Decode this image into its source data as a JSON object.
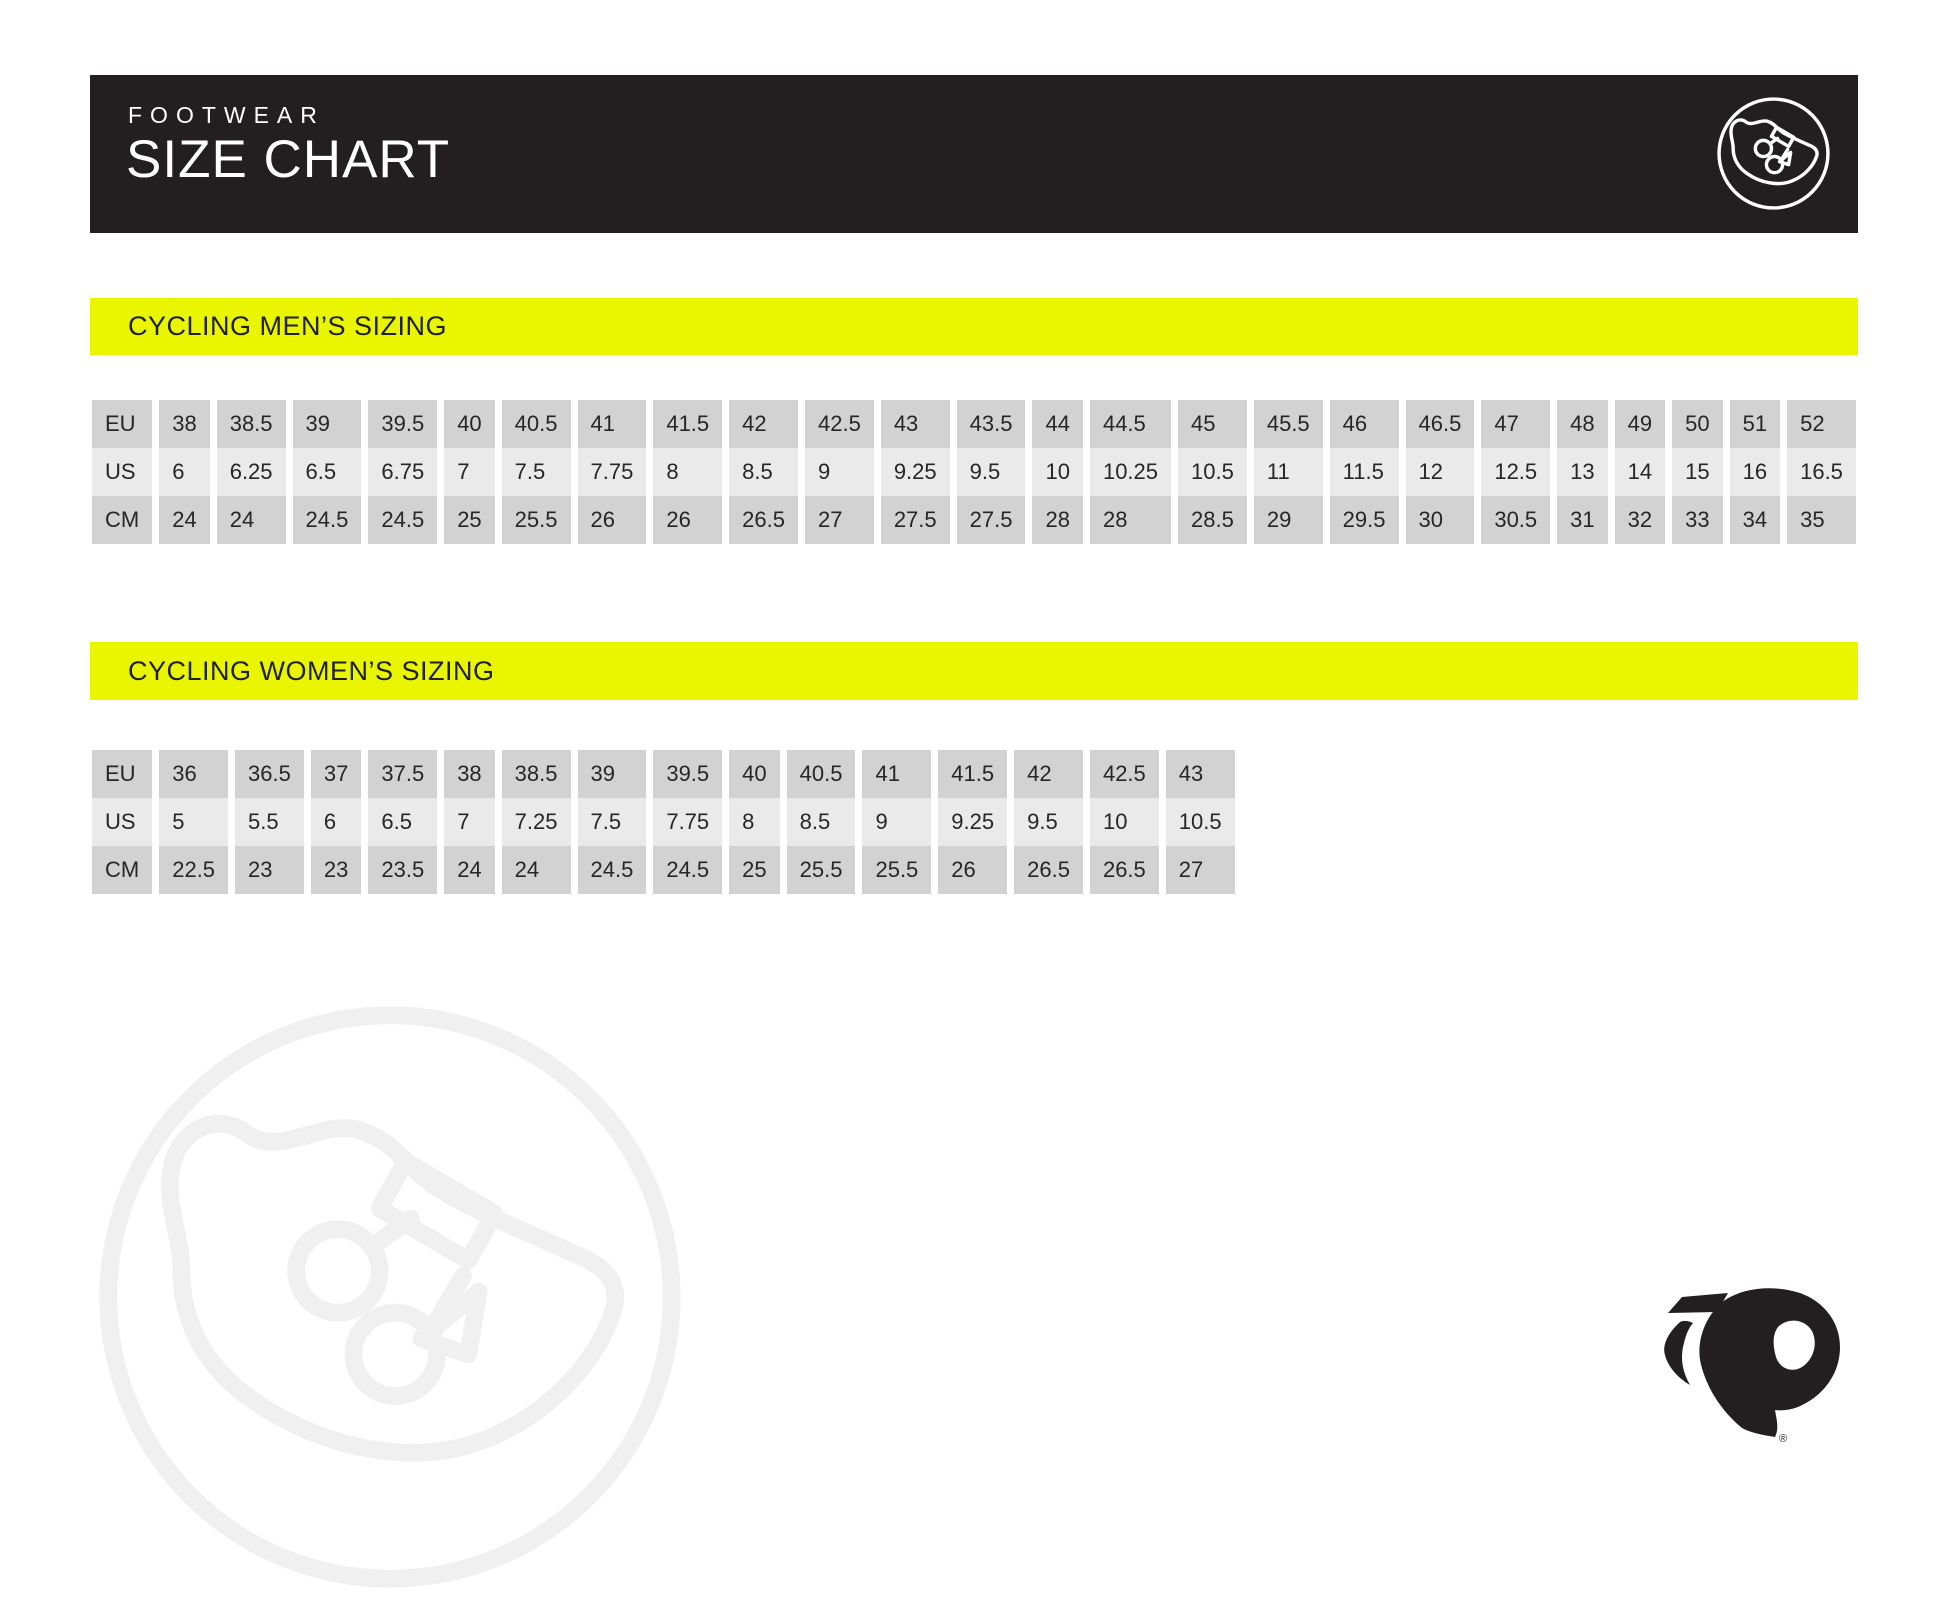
{
  "header": {
    "eyebrow": "FOOTWEAR",
    "title": "SIZE CHART"
  },
  "colors": {
    "header_bg": "#231f20",
    "accent_yellow": "#eaf600",
    "row_gray": "#d2d2d3",
    "row_light": "#eaeaeb",
    "watermark_gray": "#f0f0f1",
    "header_text": "#ffffff",
    "body_text": "#262626"
  },
  "icons": {
    "masthead": "cycling-shoe-icon",
    "watermark": "cycling-shoe-icon",
    "brand": "pearl-izumi-logo"
  },
  "sections": [
    {
      "id": "men",
      "title": "CYCLING MEN’S SIZING",
      "table": {
        "rows": [
          {
            "label": "EU",
            "values": [
              "38",
              "38.5",
              "39",
              "39.5",
              "40",
              "40.5",
              "41",
              "41.5",
              "42",
              "42.5",
              "43",
              "43.5",
              "44",
              "44.5",
              "45",
              "45.5",
              "46",
              "46.5",
              "47",
              "48",
              "49",
              "50",
              "51",
              "52"
            ]
          },
          {
            "label": "US",
            "values": [
              "6",
              "6.25",
              "6.5",
              "6.75",
              "7",
              "7.5",
              "7.75",
              "8",
              "8.5",
              "9",
              "9.25",
              "9.5",
              "10",
              "10.25",
              "10.5",
              "11",
              "11.5",
              "12",
              "12.5",
              "13",
              "14",
              "15",
              "16",
              "16.5"
            ]
          },
          {
            "label": "CM",
            "values": [
              "24",
              "24",
              "24.5",
              "24.5",
              "25",
              "25.5",
              "26",
              "26",
              "26.5",
              "27",
              "27.5",
              "27.5",
              "28",
              "28",
              "28.5",
              "29",
              "29.5",
              "30",
              "30.5",
              "31",
              "32",
              "33",
              "34",
              "35"
            ]
          }
        ]
      }
    },
    {
      "id": "women",
      "title": "CYCLING WOMEN’S SIZING",
      "table": {
        "rows": [
          {
            "label": "EU",
            "values": [
              "36",
              "36.5",
              "37",
              "37.5",
              "38",
              "38.5",
              "39",
              "39.5",
              "40",
              "40.5",
              "41",
              "41.5",
              "42",
              "42.5",
              "43"
            ]
          },
          {
            "label": "US",
            "values": [
              "5",
              "5.5",
              "6",
              "6.5",
              "7",
              "7.25",
              "7.5",
              "7.75",
              "8",
              "8.5",
              "9",
              "9.25",
              "9.5",
              "10",
              "10.5"
            ]
          },
          {
            "label": "CM",
            "values": [
              "22.5",
              "23",
              "23",
              "23.5",
              "24",
              "24",
              "24.5",
              "24.5",
              "25",
              "25.5",
              "25.5",
              "26",
              "26.5",
              "26.5",
              "27"
            ]
          }
        ]
      }
    }
  ],
  "brand": {
    "registered_mark": "®"
  }
}
